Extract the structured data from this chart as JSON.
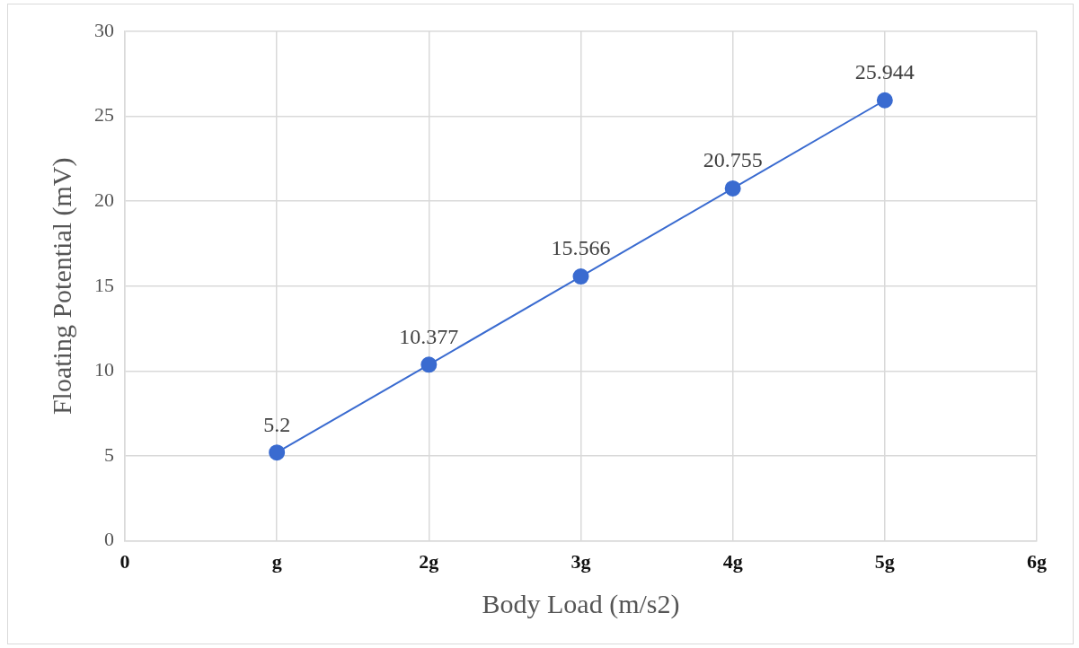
{
  "chart_data": {
    "type": "line",
    "xlabel": "Body Load (m/s2)",
    "ylabel": "Floating Potential (mV)",
    "categories": [
      "0",
      "g",
      "2g",
      "3g",
      "4g",
      "5g",
      "6g"
    ],
    "series": [
      {
        "color": "#3a6bd0",
        "values": [
          null,
          5.2,
          10.377,
          15.566,
          20.755,
          25.944,
          null
        ]
      }
    ],
    "ylim": [
      0,
      30
    ],
    "yticks": [
      0,
      5,
      10,
      15,
      20,
      25,
      30
    ],
    "grid": true,
    "legend": false,
    "marker": "circle",
    "line_style": "solid",
    "data_labels": true
  }
}
